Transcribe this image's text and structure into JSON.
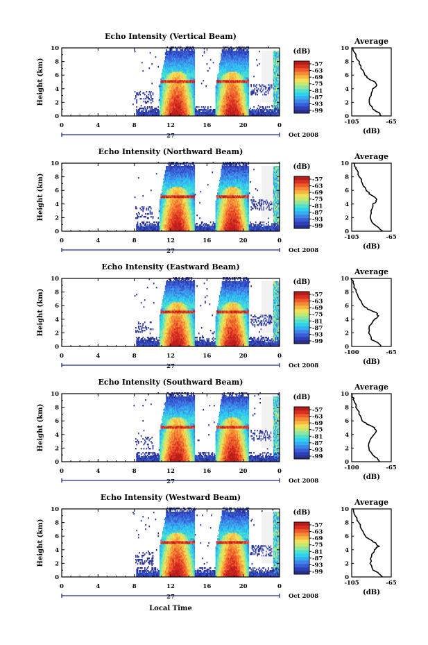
{
  "colors": {
    "scale": [
      "#2b2f8c",
      "#2f3fb8",
      "#3a5ed6",
      "#3d86e8",
      "#37aef0",
      "#2ed2ec",
      "#52e0c8",
      "#8ee6a0",
      "#c6e870",
      "#f0e05a",
      "#f7b642",
      "#f48a35",
      "#ee5a2c",
      "#d82f22",
      "#b81d1c"
    ],
    "curtain": "#f2f2f2",
    "line": "#000000"
  },
  "shared": {
    "height_ticks": [
      "0",
      "2",
      "4",
      "6",
      "8",
      "10"
    ],
    "time_ticks": [
      "0",
      "4",
      "8",
      "12",
      "16",
      "20",
      "0"
    ],
    "date_tick": "27",
    "date_label": "Oct 2008",
    "ylabel": "Height (km)",
    "colorbar_title": "(dB)",
    "colorbar_ticks": [
      "-57",
      "-63",
      "-69",
      "-75",
      "-81",
      "-87",
      "-93",
      "-99"
    ],
    "avg_title": "Average",
    "avg_xlabel": "(dB)",
    "xlabel": "Local Time"
  },
  "panels": [
    {
      "title": "Echo Intensity (Vertical Beam)",
      "avg_ticks": [
        "-105",
        "-65"
      ]
    },
    {
      "title": "Echo Intensity (Northward Beam)",
      "avg_ticks": [
        "-105",
        "-65"
      ]
    },
    {
      "title": "Echo Intensity (Eastward Beam)",
      "avg_ticks": [
        "-100",
        "-65"
      ]
    },
    {
      "title": "Echo Intensity (Southward Beam)",
      "avg_ticks": [
        "-100",
        "-65"
      ]
    },
    {
      "title": "Echo Intensity (Westward Beam)",
      "avg_ticks": [
        "-105",
        "-65"
      ]
    }
  ],
  "chart_data": [
    {
      "type": "heatmap",
      "title": "Echo Intensity (Vertical Beam)",
      "xlabel": "",
      "ylabel": "Height (km)",
      "xlim": [
        0,
        24
      ],
      "ylim": [
        0,
        10
      ],
      "colorbar": {
        "label": "(dB)",
        "range": [
          -99,
          -57
        ]
      },
      "events": [
        {
          "start": 10.7,
          "end": 14.6,
          "top": 10,
          "cap": 6
        },
        {
          "start": 16.9,
          "end": 20.6,
          "top": 10,
          "cap": 6
        }
      ],
      "bright_band_km": 5,
      "average_profile": {
        "x_range": [
          -105,
          -65
        ],
        "height": [
          0,
          0.5,
          1,
          2,
          3,
          4,
          4.5,
          5,
          5.5,
          6,
          7,
          8,
          9,
          9.5,
          10
        ],
        "dB": [
          -75,
          -78,
          -84,
          -87,
          -86,
          -84,
          -79,
          -82,
          -88,
          -91,
          -95,
          -98,
          -101,
          -103,
          -104
        ]
      }
    },
    {
      "type": "heatmap",
      "title": "Echo Intensity (Northward Beam)",
      "xlabel": "",
      "ylabel": "Height (km)",
      "xlim": [
        0,
        24
      ],
      "ylim": [
        0,
        10
      ],
      "colorbar": {
        "label": "(dB)",
        "range": [
          -99,
          -57
        ]
      },
      "events": [
        {
          "start": 10.7,
          "end": 14.6,
          "top": 10,
          "cap": 6
        },
        {
          "start": 16.9,
          "end": 20.6,
          "top": 10,
          "cap": 6
        }
      ],
      "bright_band_km": 5,
      "average_profile": {
        "x_range": [
          -105,
          -65
        ],
        "height": [
          0,
          0.5,
          1,
          2,
          3,
          4,
          4.5,
          5,
          5.5,
          6,
          7,
          8,
          9,
          9.5,
          10
        ],
        "dB": [
          -74,
          -77,
          -83,
          -86,
          -85,
          -83,
          -80,
          -81,
          -87,
          -90,
          -94,
          -97,
          -100,
          -102,
          -103
        ]
      }
    },
    {
      "type": "heatmap",
      "title": "Echo Intensity (Eastward Beam)",
      "xlabel": "",
      "ylabel": "Height (km)",
      "xlim": [
        0,
        24
      ],
      "ylim": [
        0,
        10
      ],
      "colorbar": {
        "label": "(dB)",
        "range": [
          -99,
          -57
        ]
      },
      "events": [
        {
          "start": 10.7,
          "end": 14.6,
          "top": 10,
          "cap": 6
        },
        {
          "start": 16.9,
          "end": 20.6,
          "top": 10,
          "cap": 6
        }
      ],
      "bright_band_km": 5,
      "average_profile": {
        "x_range": [
          -100,
          -65
        ],
        "height": [
          0,
          0.5,
          1,
          2,
          3,
          4,
          4.5,
          5,
          5.5,
          6,
          7,
          8,
          9,
          9.5,
          10
        ],
        "dB": [
          -74,
          -76,
          -82,
          -85,
          -84,
          -80,
          -76,
          -79,
          -86,
          -90,
          -93,
          -96,
          -98,
          -99,
          -100
        ]
      }
    },
    {
      "type": "heatmap",
      "title": "Echo Intensity (Southward Beam)",
      "xlabel": "",
      "ylabel": "Height (km)",
      "xlim": [
        0,
        24
      ],
      "ylim": [
        0,
        10
      ],
      "colorbar": {
        "label": "(dB)",
        "range": [
          -99,
          -57
        ]
      },
      "events": [
        {
          "start": 10.7,
          "end": 14.6,
          "top": 10,
          "cap": 6
        },
        {
          "start": 16.9,
          "end": 20.6,
          "top": 10,
          "cap": 6
        }
      ],
      "bright_band_km": 5,
      "average_profile": {
        "x_range": [
          -100,
          -65
        ],
        "height": [
          0,
          0.5,
          1,
          2,
          3,
          4,
          4.5,
          5,
          5.5,
          6,
          7,
          8,
          9,
          9.5,
          10
        ],
        "dB": [
          -75,
          -77,
          -82,
          -85,
          -84,
          -81,
          -78,
          -80,
          -86,
          -90,
          -93,
          -96,
          -98,
          -99,
          -100
        ]
      }
    },
    {
      "type": "heatmap",
      "title": "Echo Intensity (Westward Beam)",
      "xlabel": "Local Time",
      "ylabel": "Height (km)",
      "xlim": [
        0,
        24
      ],
      "ylim": [
        0,
        10
      ],
      "colorbar": {
        "label": "(dB)",
        "range": [
          -99,
          -57
        ]
      },
      "events": [
        {
          "start": 10.7,
          "end": 14.6,
          "top": 10,
          "cap": 6
        },
        {
          "start": 16.9,
          "end": 20.6,
          "top": 10,
          "cap": 6
        }
      ],
      "bright_band_km": 5,
      "average_profile": {
        "x_range": [
          -105,
          -65
        ],
        "height": [
          0,
          0.5,
          1,
          2,
          3,
          4,
          4.5,
          5,
          5.5,
          6,
          7,
          8,
          9,
          9.5,
          10
        ],
        "dB": [
          -74,
          -77,
          -83,
          -86,
          -85,
          -82,
          -78,
          -81,
          -87,
          -91,
          -95,
          -98,
          -101,
          -103,
          -104
        ]
      }
    }
  ]
}
